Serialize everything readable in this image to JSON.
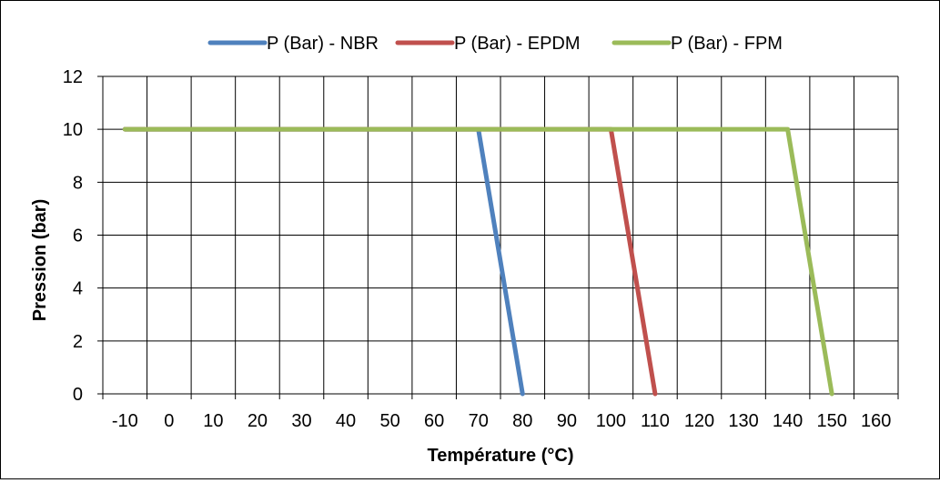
{
  "chart_data": {
    "type": "line",
    "xlabel": "Température (°C)",
    "ylabel": "Pression (bar)",
    "xlim": [
      -15,
      165
    ],
    "ylim": [
      0,
      12
    ],
    "xticks": [
      -10,
      0,
      10,
      20,
      30,
      40,
      50,
      60,
      70,
      80,
      90,
      100,
      110,
      120,
      130,
      140,
      150,
      160
    ],
    "yticks": [
      0,
      2,
      4,
      6,
      8,
      10,
      12
    ],
    "grid": true,
    "legend_position": "top",
    "series": [
      {
        "name": "P (Bar) - NBR",
        "color": "#4f81bd",
        "x": [
          -10,
          70,
          80
        ],
        "y": [
          10,
          10,
          0
        ]
      },
      {
        "name": "P (Bar) - EPDM",
        "color": "#c0504d",
        "x": [
          -10,
          100,
          110
        ],
        "y": [
          10,
          10,
          0
        ]
      },
      {
        "name": "P (Bar) - FPM",
        "color": "#9bbb59",
        "x": [
          -10,
          140,
          150
        ],
        "y": [
          10,
          10,
          0
        ]
      }
    ]
  }
}
